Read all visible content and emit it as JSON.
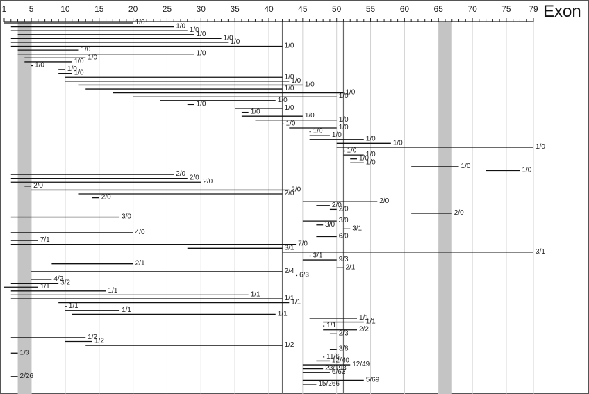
{
  "chart_data": {
    "type": "range-bar",
    "title": "",
    "xlabel": "Exon",
    "ylabel": "",
    "x_ticks": [
      1,
      5,
      10,
      15,
      20,
      25,
      30,
      35,
      40,
      45,
      50,
      55,
      60,
      65,
      70,
      75,
      79
    ],
    "x_range": [
      1,
      79
    ],
    "grid": "vertical",
    "shaded_regions": [
      [
        3,
        5
      ],
      [
        65,
        67
      ]
    ],
    "highlight_lines": [
      42,
      51
    ],
    "segments": [
      {
        "start": 1,
        "end": 20,
        "label": "1/0"
      },
      {
        "start": 2,
        "end": 26,
        "label": "1/0"
      },
      {
        "start": 2,
        "end": 28,
        "label": "1/0"
      },
      {
        "start": 3,
        "end": 29,
        "label": "1/0"
      },
      {
        "start": 2,
        "end": 33,
        "label": "1/0"
      },
      {
        "start": 2,
        "end": 34,
        "label": "1/0"
      },
      {
        "start": 2,
        "end": 42,
        "label": "1/0"
      },
      {
        "start": 3,
        "end": 12,
        "label": "1/0"
      },
      {
        "start": 3,
        "end": 29,
        "label": "1/0"
      },
      {
        "start": 4,
        "end": 13,
        "label": "1/0"
      },
      {
        "start": 4,
        "end": 11,
        "label": "1/0"
      },
      {
        "start": 5,
        "end": 5,
        "label": "1/0"
      },
      {
        "start": 9,
        "end": 10,
        "label": "1/0"
      },
      {
        "start": 9,
        "end": 11,
        "label": "1/0"
      },
      {
        "start": 10,
        "end": 42,
        "label": "1/0"
      },
      {
        "start": 10,
        "end": 43,
        "label": "1/0"
      },
      {
        "start": 12,
        "end": 45,
        "label": "1/0"
      },
      {
        "start": 13,
        "end": 42,
        "label": "1/0"
      },
      {
        "start": 17,
        "end": 51,
        "label": "1/0"
      },
      {
        "start": 20,
        "end": 50,
        "label": "1/0"
      },
      {
        "start": 24,
        "end": 41,
        "label": "1/0"
      },
      {
        "start": 28,
        "end": 29,
        "label": "1/0"
      },
      {
        "start": 35,
        "end": 42,
        "label": "1/0"
      },
      {
        "start": 36,
        "end": 37,
        "label": "1/0"
      },
      {
        "start": 36,
        "end": 45,
        "label": "1/0"
      },
      {
        "start": 38,
        "end": 50,
        "label": "1/0"
      },
      {
        "start": 42,
        "end": 42,
        "label": "1/0"
      },
      {
        "start": 43,
        "end": 50,
        "label": "1/0"
      },
      {
        "start": 46,
        "end": 46,
        "label": "1/0"
      },
      {
        "start": 46,
        "end": 49,
        "label": "1/0"
      },
      {
        "start": 46,
        "end": 54,
        "label": "1/0"
      },
      {
        "start": 50,
        "end": 58,
        "label": "1/0"
      },
      {
        "start": 50,
        "end": 79,
        "label": "1/0"
      },
      {
        "start": 51,
        "end": 51,
        "label": "1/0"
      },
      {
        "start": 51,
        "end": 54,
        "label": "1/0"
      },
      {
        "start": 52,
        "end": 53,
        "label": "1/0"
      },
      {
        "start": 52,
        "end": 54,
        "label": "1/0"
      },
      {
        "start": 61,
        "end": 68,
        "label": "1/0"
      },
      {
        "start": 72,
        "end": 77,
        "label": "1/0"
      },
      {
        "start": 2,
        "end": 26,
        "label": "2/0"
      },
      {
        "start": 2,
        "end": 28,
        "label": "2/0"
      },
      {
        "start": 2,
        "end": 30,
        "label": "2/0"
      },
      {
        "start": 4,
        "end": 5,
        "label": "2/0"
      },
      {
        "start": 5,
        "end": 43,
        "label": "2/0"
      },
      {
        "start": 12,
        "end": 42,
        "label": "2/0"
      },
      {
        "start": 14,
        "end": 15,
        "label": "2/0"
      },
      {
        "start": 45,
        "end": 56,
        "label": "2/0"
      },
      {
        "start": 47,
        "end": 49,
        "label": "2/0"
      },
      {
        "start": 49,
        "end": 50,
        "label": "2/0"
      },
      {
        "start": 61,
        "end": 67,
        "label": "2/0"
      },
      {
        "start": 2,
        "end": 18,
        "label": "3/0"
      },
      {
        "start": 45,
        "end": 50,
        "label": "3/0"
      },
      {
        "start": 47,
        "end": 48,
        "label": "3/0"
      },
      {
        "start": 51,
        "end": 52,
        "label": "3/1"
      },
      {
        "start": 2,
        "end": 20,
        "label": "4/0"
      },
      {
        "start": 47,
        "end": 50,
        "label": "6/0"
      },
      {
        "start": 2,
        "end": 6,
        "label": "7/1"
      },
      {
        "start": 2,
        "end": 44,
        "label": "7/0"
      },
      {
        "start": 28,
        "end": 42,
        "label": "3/1"
      },
      {
        "start": 42,
        "end": 79,
        "label": "3/1"
      },
      {
        "start": 46,
        "end": 46,
        "label": "3/1"
      },
      {
        "start": 45,
        "end": 50,
        "label": "9/3"
      },
      {
        "start": 8,
        "end": 20,
        "label": "2/1"
      },
      {
        "start": 50,
        "end": 51,
        "label": "2/1"
      },
      {
        "start": 5,
        "end": 42,
        "label": "2/4"
      },
      {
        "start": 44,
        "end": 44,
        "label": "6/3"
      },
      {
        "start": 5,
        "end": 8,
        "label": "4/2"
      },
      {
        "start": 2,
        "end": 9,
        "label": "3/2"
      },
      {
        "start": 1,
        "end": 6,
        "label": "1/1"
      },
      {
        "start": 2,
        "end": 16,
        "label": "1/1"
      },
      {
        "start": 2,
        "end": 37,
        "label": "1/1"
      },
      {
        "start": 2,
        "end": 42,
        "label": "1/1"
      },
      {
        "start": 9,
        "end": 43,
        "label": "1/1"
      },
      {
        "start": 10,
        "end": 10,
        "label": "1/1"
      },
      {
        "start": 10,
        "end": 18,
        "label": "1/1"
      },
      {
        "start": 11,
        "end": 41,
        "label": "1/1"
      },
      {
        "start": 46,
        "end": 53,
        "label": "1/1"
      },
      {
        "start": 48,
        "end": 54,
        "label": "1/1"
      },
      {
        "start": 48,
        "end": 48,
        "label": "1/1"
      },
      {
        "start": 48,
        "end": 53,
        "label": "2/2"
      },
      {
        "start": 49,
        "end": 50,
        "label": "2/3"
      },
      {
        "start": 2,
        "end": 13,
        "label": "1/2"
      },
      {
        "start": 10,
        "end": 14,
        "label": "1/2"
      },
      {
        "start": 13,
        "end": 42,
        "label": "1/2"
      },
      {
        "start": 49,
        "end": 50,
        "label": "3/8"
      },
      {
        "start": 2,
        "end": 3,
        "label": "1/3"
      },
      {
        "start": 48,
        "end": 48,
        "label": "11/6"
      },
      {
        "start": 47,
        "end": 49,
        "label": "12/40"
      },
      {
        "start": 45,
        "end": 52,
        "label": "12/49"
      },
      {
        "start": 45,
        "end": 48,
        "label": "23/193"
      },
      {
        "start": 45,
        "end": 49,
        "label": "6/63"
      },
      {
        "start": 2,
        "end": 3,
        "label": "2/26"
      },
      {
        "start": 45,
        "end": 54,
        "label": "5/69"
      },
      {
        "start": 45,
        "end": 47,
        "label": "15/266"
      }
    ]
  }
}
